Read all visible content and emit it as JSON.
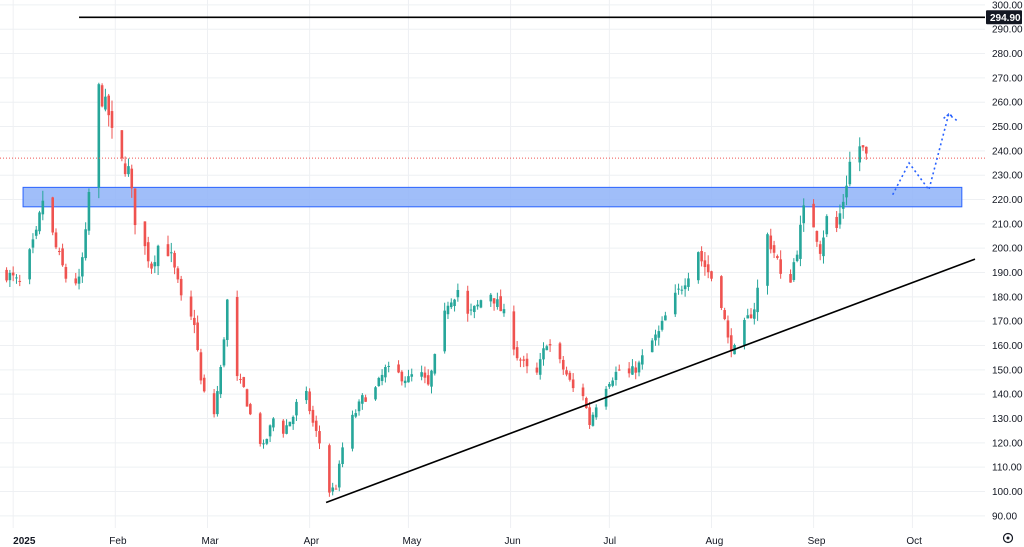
{
  "chart_data": {
    "type": "candlestick",
    "y_axis": {
      "range": [
        85,
        302
      ],
      "ticks": [
        "300.00",
        "290.00",
        "280.00",
        "270.00",
        "260.00",
        "250.00",
        "240.00",
        "230.00",
        "220.00",
        "210.00",
        "200.00",
        "190.00",
        "180.00",
        "170.00",
        "160.00",
        "150.00",
        "140.00",
        "130.00",
        "120.00",
        "110.00",
        "100.00",
        "90.00"
      ],
      "tick_values": [
        300,
        290,
        280,
        270,
        260,
        250,
        240,
        230,
        220,
        210,
        200,
        190,
        180,
        170,
        160,
        150,
        140,
        130,
        120,
        110,
        100,
        90
      ]
    },
    "x_axis": {
      "labels": [
        {
          "text": "2025",
          "date": "2025-01-01",
          "bold": true
        },
        {
          "text": "Feb",
          "date": "2025-02-01",
          "bold": false
        },
        {
          "text": "Mar",
          "date": "2025-03-01",
          "bold": false
        },
        {
          "text": "Apr",
          "date": "2025-04-01",
          "bold": false
        },
        {
          "text": "May",
          "date": "2025-05-01",
          "bold": false
        },
        {
          "text": "Jun",
          "date": "2025-06-01",
          "bold": false
        },
        {
          "text": "Jul",
          "date": "2025-07-01",
          "bold": false
        },
        {
          "text": "Aug",
          "date": "2025-08-01",
          "bold": false
        },
        {
          "text": "Sep",
          "date": "2025-09-01",
          "bold": false
        },
        {
          "text": "Oct",
          "date": "2025-10-01",
          "bold": false
        }
      ],
      "range": [
        "2024-12-28",
        "2025-10-20"
      ]
    },
    "price_label": {
      "text": "294.90",
      "value": 294.9
    },
    "current_price": 237,
    "anchors": [
      {
        "date": "2024-12-28",
        "close": 192
      },
      {
        "date": "2025-01-03",
        "close": 185
      },
      {
        "date": "2025-01-08",
        "close": 205
      },
      {
        "date": "2025-01-10",
        "close": 220
      },
      {
        "date": "2025-01-14",
        "close": 200
      },
      {
        "date": "2025-01-17",
        "close": 188
      },
      {
        "date": "2025-01-21",
        "close": 186
      },
      {
        "date": "2025-01-23",
        "close": 205
      },
      {
        "date": "2025-01-25",
        "close": 240
      },
      {
        "date": "2025-01-27",
        "close": 265
      },
      {
        "date": "2025-01-30",
        "close": 255
      },
      {
        "date": "2025-02-01",
        "close": 238
      },
      {
        "date": "2025-02-05",
        "close": 232
      },
      {
        "date": "2025-02-07",
        "close": 212
      },
      {
        "date": "2025-02-10",
        "close": 200
      },
      {
        "date": "2025-02-12",
        "close": 193
      },
      {
        "date": "2025-02-15",
        "close": 205
      },
      {
        "date": "2025-02-18",
        "close": 196
      },
      {
        "date": "2025-02-20",
        "close": 185
      },
      {
        "date": "2025-02-22",
        "close": 172
      },
      {
        "date": "2025-02-25",
        "close": 170
      },
      {
        "date": "2025-02-27",
        "close": 145
      },
      {
        "date": "2025-02-28",
        "close": 140
      },
      {
        "date": "2025-03-03",
        "close": 132
      },
      {
        "date": "2025-03-05",
        "close": 150
      },
      {
        "date": "2025-03-07",
        "close": 178
      },
      {
        "date": "2025-03-09",
        "close": 148
      },
      {
        "date": "2025-03-12",
        "close": 142
      },
      {
        "date": "2025-03-15",
        "close": 126
      },
      {
        "date": "2025-03-18",
        "close": 118
      },
      {
        "date": "2025-03-21",
        "close": 130
      },
      {
        "date": "2025-03-24",
        "close": 125
      },
      {
        "date": "2025-03-27",
        "close": 131
      },
      {
        "date": "2025-03-30",
        "close": 145
      },
      {
        "date": "2025-04-02",
        "close": 128
      },
      {
        "date": "2025-04-04",
        "close": 120
      },
      {
        "date": "2025-04-07",
        "close": 100
      },
      {
        "date": "2025-04-09",
        "close": 102
      },
      {
        "date": "2025-04-11",
        "close": 118
      },
      {
        "date": "2025-04-14",
        "close": 130
      },
      {
        "date": "2025-04-17",
        "close": 138
      },
      {
        "date": "2025-04-21",
        "close": 142
      },
      {
        "date": "2025-04-24",
        "close": 150
      },
      {
        "date": "2025-04-28",
        "close": 148
      },
      {
        "date": "2025-05-01",
        "close": 146
      },
      {
        "date": "2025-05-04",
        "close": 150
      },
      {
        "date": "2025-05-07",
        "close": 143
      },
      {
        "date": "2025-05-10",
        "close": 160
      },
      {
        "date": "2025-05-13",
        "close": 178
      },
      {
        "date": "2025-05-16",
        "close": 183
      },
      {
        "date": "2025-05-19",
        "close": 172
      },
      {
        "date": "2025-05-22",
        "close": 176
      },
      {
        "date": "2025-05-25",
        "close": 184
      },
      {
        "date": "2025-05-28",
        "close": 177
      },
      {
        "date": "2025-05-31",
        "close": 170
      },
      {
        "date": "2025-06-03",
        "close": 156
      },
      {
        "date": "2025-06-06",
        "close": 150
      },
      {
        "date": "2025-06-09",
        "close": 148
      },
      {
        "date": "2025-06-12",
        "close": 162
      },
      {
        "date": "2025-06-15",
        "close": 155
      },
      {
        "date": "2025-06-18",
        "close": 148
      },
      {
        "date": "2025-06-20",
        "close": 142
      },
      {
        "date": "2025-06-23",
        "close": 140
      },
      {
        "date": "2025-06-25",
        "close": 128
      },
      {
        "date": "2025-06-28",
        "close": 140
      },
      {
        "date": "2025-07-01",
        "close": 146
      },
      {
        "date": "2025-07-04",
        "close": 150
      },
      {
        "date": "2025-07-07",
        "close": 148
      },
      {
        "date": "2025-07-10",
        "close": 152
      },
      {
        "date": "2025-07-13",
        "close": 160
      },
      {
        "date": "2025-07-16",
        "close": 165
      },
      {
        "date": "2025-07-19",
        "close": 175
      },
      {
        "date": "2025-07-22",
        "close": 182
      },
      {
        "date": "2025-07-25",
        "close": 190
      },
      {
        "date": "2025-07-27",
        "close": 204
      },
      {
        "date": "2025-07-29",
        "close": 195
      },
      {
        "date": "2025-08-01",
        "close": 188
      },
      {
        "date": "2025-08-04",
        "close": 178
      },
      {
        "date": "2025-08-06",
        "close": 162
      },
      {
        "date": "2025-08-08",
        "close": 158
      },
      {
        "date": "2025-08-11",
        "close": 168
      },
      {
        "date": "2025-08-14",
        "close": 176
      },
      {
        "date": "2025-08-16",
        "close": 190
      },
      {
        "date": "2025-08-18",
        "close": 205
      },
      {
        "date": "2025-08-21",
        "close": 195
      },
      {
        "date": "2025-08-23",
        "close": 180
      },
      {
        "date": "2025-08-25",
        "close": 188
      },
      {
        "date": "2025-08-27",
        "close": 200
      },
      {
        "date": "2025-08-29",
        "close": 215
      },
      {
        "date": "2025-09-01",
        "close": 210
      },
      {
        "date": "2025-09-03",
        "close": 200
      },
      {
        "date": "2025-09-05",
        "close": 212
      },
      {
        "date": "2025-09-08",
        "close": 208
      },
      {
        "date": "2025-09-10",
        "close": 220
      },
      {
        "date": "2025-09-12",
        "close": 235
      },
      {
        "date": "2025-09-14",
        "close": 244
      },
      {
        "date": "2025-09-16",
        "close": 240
      },
      {
        "date": "2025-09-17",
        "close": 237
      }
    ],
    "annotations": {
      "resistance_line": {
        "value": 294.9,
        "from": "2025-01-21",
        "to": "2025-10-20"
      },
      "zone": {
        "from": "2025-01-04",
        "to": "2025-10-16",
        "low": 217,
        "high": 225
      },
      "trendline": {
        "from": {
          "date": "2025-04-06",
          "value": 95.5
        },
        "to": {
          "date": "2025-10-20",
          "value": 195.5
        }
      },
      "projection": [
        {
          "date": "2025-09-25",
          "value": 222
        },
        {
          "date": "2025-09-30",
          "value": 235
        },
        {
          "date": "2025-10-06",
          "value": 224
        },
        {
          "date": "2025-10-12",
          "value": 255
        },
        {
          "date": "2025-10-15",
          "value": 252
        }
      ]
    },
    "colors": {
      "up": "#26a69a",
      "down": "#ef5350",
      "zone_fill": "#8fb3f8",
      "zone_stroke": "#2962ff",
      "line": "#000000",
      "projection": "#2962ff",
      "price_label_bg": "#131722",
      "current_price_line": "#ef5350"
    },
    "grid": true,
    "settings_icon": "gear-icon"
  }
}
